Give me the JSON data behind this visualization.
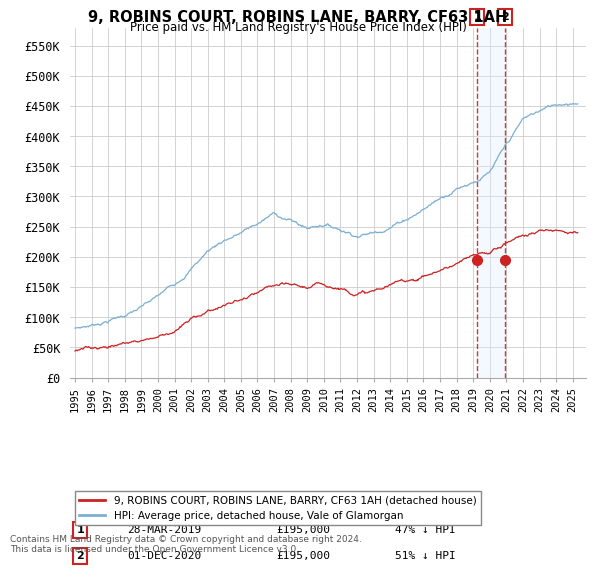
{
  "title": "9, ROBINS COURT, ROBINS LANE, BARRY, CF63 1AH",
  "subtitle": "Price paid vs. HM Land Registry's House Price Index (HPI)",
  "ylabel_ticks": [
    "£0",
    "£50K",
    "£100K",
    "£150K",
    "£200K",
    "£250K",
    "£300K",
    "£350K",
    "£400K",
    "£450K",
    "£500K",
    "£550K"
  ],
  "ytick_values": [
    0,
    50000,
    100000,
    150000,
    200000,
    250000,
    300000,
    350000,
    400000,
    450000,
    500000,
    550000
  ],
  "ylim": [
    0,
    580000
  ],
  "xlim_start": 1994.7,
  "xlim_end": 2025.8,
  "legend_line1": "9, ROBINS COURT, ROBINS LANE, BARRY, CF63 1AH (detached house)",
  "legend_line2": "HPI: Average price, detached house, Vale of Glamorgan",
  "sale1_label": "1",
  "sale1_date": "28-MAR-2019",
  "sale1_price": "£195,000",
  "sale1_hpi": "47% ↓ HPI",
  "sale2_label": "2",
  "sale2_date": "01-DEC-2020",
  "sale2_price": "£195,000",
  "sale2_hpi": "51% ↓ HPI",
  "footnote": "Contains HM Land Registry data © Crown copyright and database right 2024.\nThis data is licensed under the Open Government Licence v3.0.",
  "hpi_color": "#7bafd4",
  "price_color": "#cc2222",
  "marker_color": "#cc2222",
  "sale1_x": 2019.24,
  "sale1_y": 195000,
  "sale2_x": 2020.92,
  "sale2_y": 195000,
  "bg_color": "#ffffff",
  "grid_color": "#cccccc",
  "highlight_fill_color": "#ddeeff",
  "highlight_x_start": 2019.24,
  "highlight_x_end": 2020.92
}
